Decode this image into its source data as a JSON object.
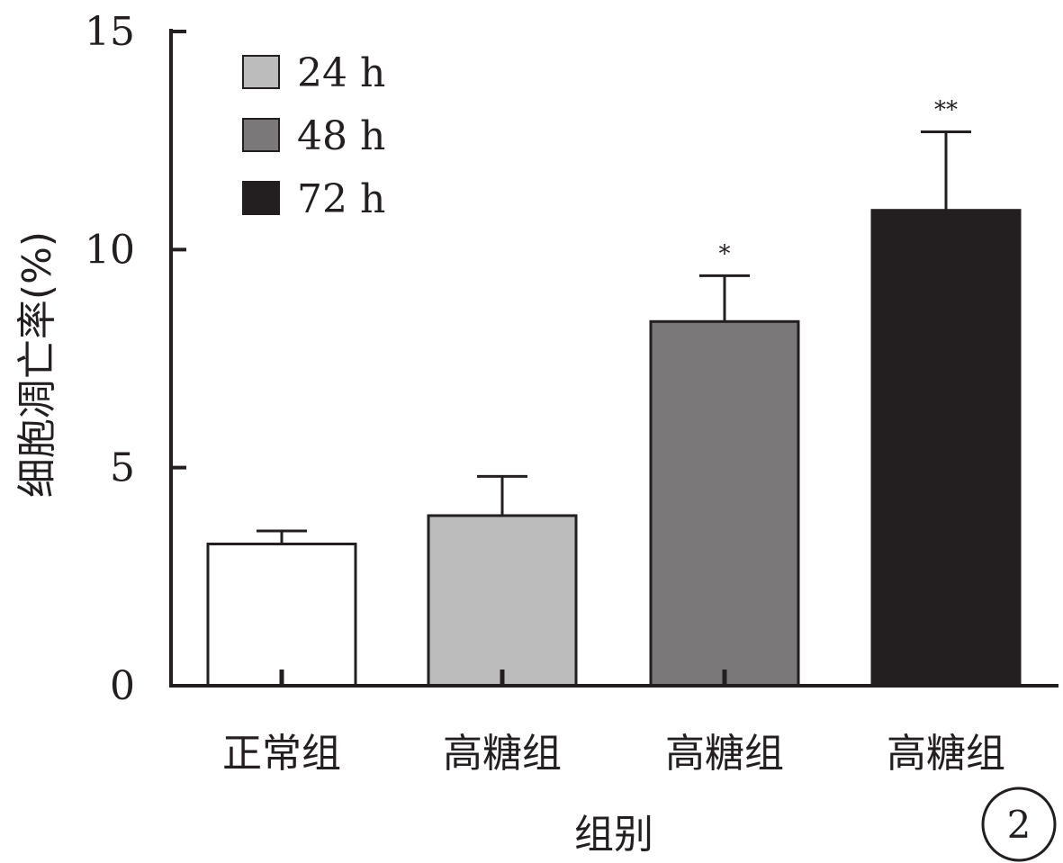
{
  "chart_data": {
    "type": "bar",
    "categories": [
      "正常组",
      "高糖组",
      "高糖组",
      "高糖组"
    ],
    "values": [
      3.25,
      3.9,
      8.35,
      10.9
    ],
    "errors": [
      0.3,
      0.9,
      1.05,
      1.8
    ],
    "significance": [
      "",
      "",
      "*",
      "**"
    ],
    "bar_colors": [
      "#ffffff",
      "#bcbcbc",
      "#7a7879",
      "#231f20"
    ],
    "legend": [
      {
        "label": "24 h",
        "color": "#bcbcbc"
      },
      {
        "label": "48 h",
        "color": "#7a7879"
      },
      {
        "label": "72 h",
        "color": "#231f20"
      }
    ],
    "legend_position": "top-left",
    "xlabel": "组别",
    "ylabel": "细胞凋亡率(%)",
    "ylim": [
      0,
      15
    ],
    "yticks": [
      "0",
      "5",
      "10",
      "15"
    ],
    "panel_label": "2",
    "grid": false
  }
}
